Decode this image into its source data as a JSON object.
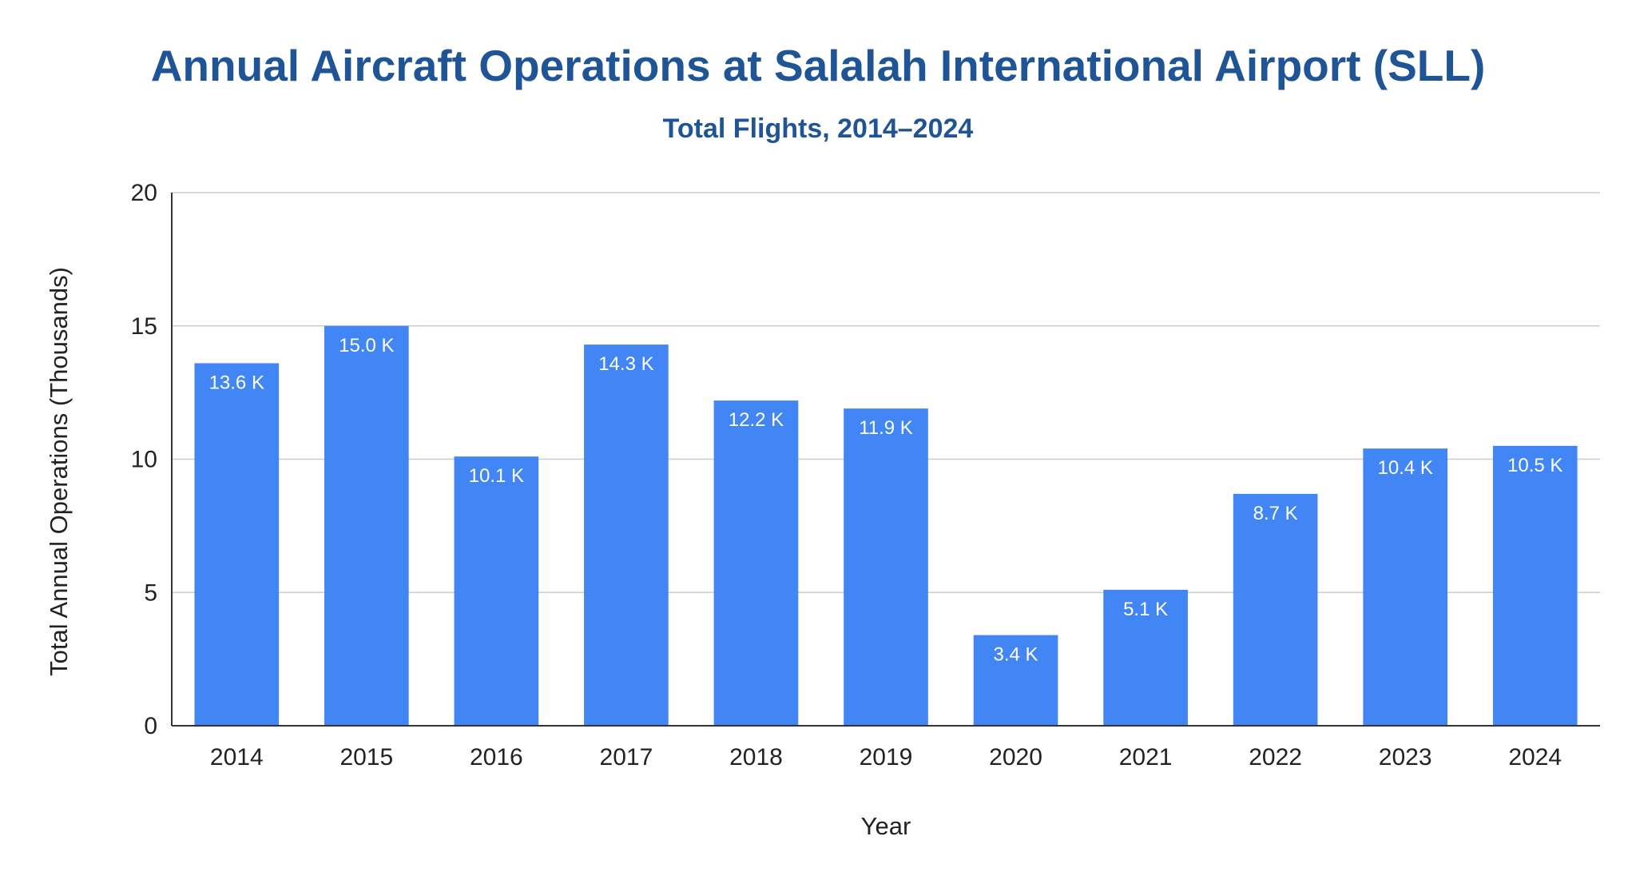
{
  "chart_data": {
    "type": "bar",
    "title": "Annual Aircraft Operations at Salalah International Airport (SLL)",
    "subtitle": "Total Flights, 2014–2024",
    "xlabel": "Year",
    "ylabel": "Total Annual Operations (Thousands)",
    "categories": [
      "2014",
      "2015",
      "2016",
      "2017",
      "2018",
      "2019",
      "2020",
      "2021",
      "2022",
      "2023",
      "2024"
    ],
    "values": [
      13.6,
      15.0,
      10.1,
      14.3,
      12.2,
      11.9,
      3.4,
      5.1,
      8.7,
      10.4,
      10.5
    ],
    "data_labels": [
      "13.6 K",
      "15.0 K",
      "10.1 K",
      "14.3 K",
      "12.2 K",
      "11.9 K",
      "3.4 K",
      "5.1 K",
      "8.7 K",
      "10.4 K",
      "10.5 K"
    ],
    "yticks": [
      "0",
      "5",
      "10",
      "15",
      "20"
    ],
    "ylim": [
      0,
      20
    ],
    "grid": true,
    "legend": "none",
    "bar_color": "#4285f4",
    "title_color": "#1f5597"
  }
}
